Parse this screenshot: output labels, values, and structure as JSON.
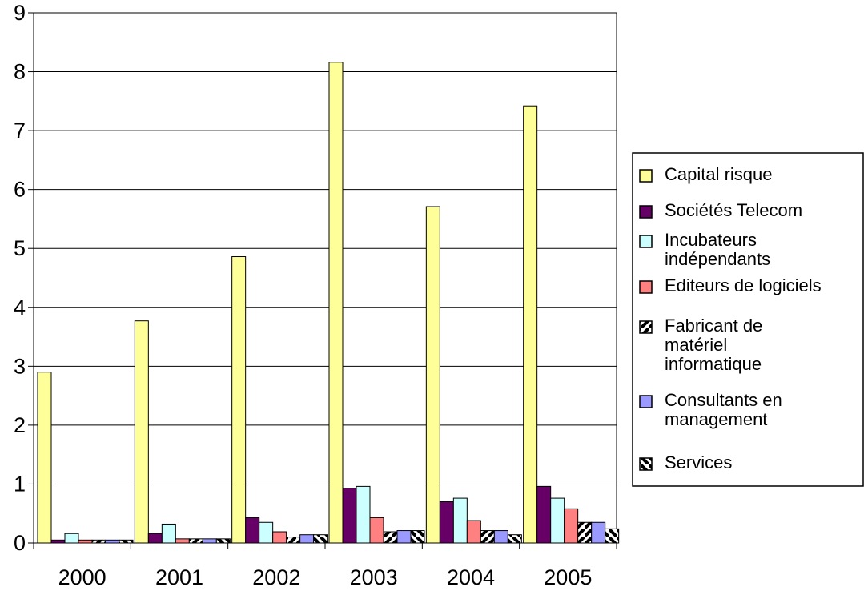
{
  "chart_data": {
    "type": "bar",
    "title": "",
    "xlabel": "",
    "ylabel": "",
    "categories": [
      "2000",
      "2001",
      "2002",
      "2003",
      "2004",
      "2005"
    ],
    "ylim": [
      0,
      9
    ],
    "yticks": [
      "0",
      "1",
      "2",
      "3",
      "4",
      "5",
      "6",
      "7",
      "8",
      "9"
    ],
    "grid": "horizontal",
    "legend_position": "right",
    "series": [
      {
        "name": "Capital risque",
        "color": "#ffff99",
        "pattern": "solid",
        "values": [
          2.9,
          3.77,
          4.86,
          8.16,
          5.71,
          7.42
        ]
      },
      {
        "name": "Sociétés Telecom",
        "color": "#660066",
        "pattern": "solid",
        "values": [
          0.05,
          0.16,
          0.43,
          0.93,
          0.7,
          0.96
        ]
      },
      {
        "name": "Incubateurs indépendants",
        "color": "#ccffff",
        "pattern": "solid",
        "values": [
          0.16,
          0.32,
          0.35,
          0.96,
          0.76,
          0.76
        ]
      },
      {
        "name": "Editeurs de logiciels",
        "color": "#ff8080",
        "pattern": "solid",
        "values": [
          0.05,
          0.07,
          0.19,
          0.43,
          0.38,
          0.58
        ]
      },
      {
        "name": "Fabricant de matériel informatique",
        "color": "#ffffff",
        "pattern": "diag-up",
        "values": [
          0.05,
          0.07,
          0.1,
          0.19,
          0.21,
          0.35
        ]
      },
      {
        "name": "Consultants en management",
        "color": "#9999ff",
        "pattern": "solid",
        "values": [
          0.05,
          0.07,
          0.14,
          0.21,
          0.21,
          0.35
        ]
      },
      {
        "name": "Services",
        "color": "#ffffff",
        "pattern": "diag-down",
        "values": [
          0.05,
          0.07,
          0.14,
          0.21,
          0.14,
          0.24
        ]
      }
    ]
  },
  "legend": {
    "items": [
      {
        "lines": [
          "Capital risque"
        ]
      },
      {
        "lines": [
          "Sociétés Telecom"
        ]
      },
      {
        "lines": [
          "Incubateurs",
          "indépendants"
        ]
      },
      {
        "lines": [
          "Editeurs de logiciels"
        ]
      },
      {
        "lines": [
          "Fabricant de",
          "matériel",
          "informatique"
        ]
      },
      {
        "lines": [
          "Consultants en",
          "management"
        ]
      },
      {
        "lines": [
          "Services"
        ]
      }
    ]
  }
}
